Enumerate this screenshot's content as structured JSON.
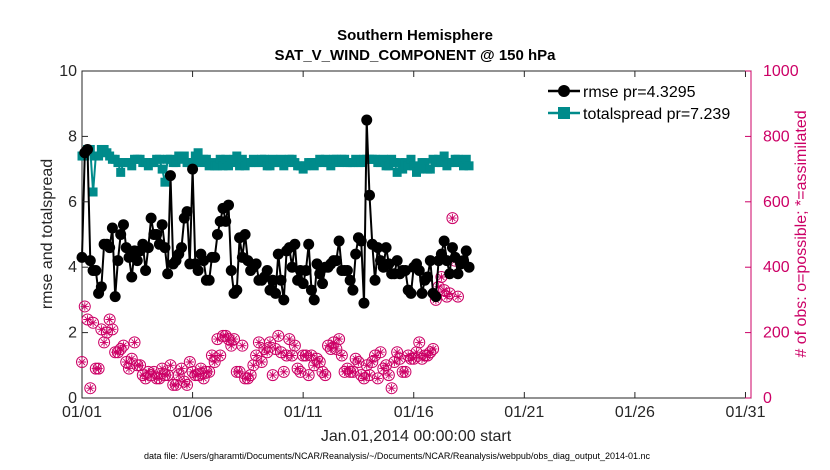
{
  "chart_data": {
    "type": "line",
    "title": [
      "Southern Hemisphere",
      "SAT_V_WIND_COMPONENT @ 150 hPa"
    ],
    "xlabel": "Jan.01,2014 00:00:00 start",
    "ylabel_left": "rmse and totalspread",
    "ylabel_right": "# of obs: o=possible; *=assimilated",
    "footnote": "data file: /Users/gharamti/Documents/NCAR/Reanalysis/~/Documents/NCAR/Reanalysis/webpub/obs_diag_output_2014-01.nc",
    "xlim": [
      1,
      31.25
    ],
    "ylim_left": [
      0,
      10
    ],
    "ylim_right": [
      0,
      1000
    ],
    "x_ticks": [
      1,
      6,
      11,
      16,
      21,
      26,
      31
    ],
    "x_tick_labels": [
      "01/01",
      "01/06",
      "01/11",
      "01/16",
      "01/21",
      "01/26",
      "01/31"
    ],
    "y_ticks_left": [
      "0",
      "2",
      "4",
      "6",
      "8",
      "10"
    ],
    "y_ticks_right": [
      "0",
      "200",
      "400",
      "600",
      "800",
      "1000"
    ],
    "grid": false,
    "legend_location": "top-right",
    "x_start": 1,
    "x_step": 0.125,
    "series": [
      {
        "name": "rmse pr=4.3295",
        "axis": "left",
        "color": "#000000",
        "marker": "circle",
        "values": [
          4.3,
          7.5,
          7.6,
          4.2,
          3.9,
          3.9,
          3.2,
          3.4,
          4.7,
          4.7,
          4.6,
          5.2,
          3.1,
          4.2,
          5.0,
          5.3,
          4.6,
          4.3,
          3.7,
          4.5,
          4.2,
          4.5,
          4.7,
          3.9,
          4.6,
          5.5,
          5.0,
          5.0,
          4.7,
          5.3,
          4.6,
          3.8,
          6.8,
          4.1,
          4.2,
          4.4,
          4.6,
          5.5,
          5.7,
          4.1,
          7.0,
          4.1,
          3.9,
          4.4,
          4.2,
          3.6,
          3.6,
          4.3,
          4.3,
          5.0,
          5.4,
          5.8,
          5.4,
          5.9,
          3.9,
          3.2,
          3.3,
          4.9,
          4.3,
          5.0,
          4.2,
          3.9,
          4.0,
          4.1,
          3.6,
          3.6,
          3.7,
          3.9,
          3.3,
          3.6,
          3.2,
          4.4,
          3.6,
          3.0,
          4.5,
          4.6,
          4.0,
          4.7,
          3.6,
          3.9,
          3.5,
          3.9,
          4.7,
          3.3,
          3.0,
          4.1,
          3.8,
          3.5,
          4.0,
          4.0,
          4.1,
          4.2,
          4.2,
          4.8,
          3.9,
          3.9,
          3.9,
          3.6,
          3.3,
          4.4,
          4.9,
          4.8,
          2.9,
          8.5,
          6.2,
          4.7,
          3.6,
          4.6,
          4.2,
          4.0,
          4.6,
          4.1,
          3.8,
          3.8,
          4.2,
          3.8,
          3.9,
          3.9,
          3.3,
          3.2,
          4.0,
          4.1,
          3.9,
          3.2,
          3.6,
          3.7,
          4.2,
          3.2,
          3.1,
          4.2,
          4.4,
          4.8,
          4.2,
          3.8,
          4.6,
          4.3,
          3.8,
          4.1,
          4.2,
          4.5,
          4.0
        ]
      },
      {
        "name": "totalspread pr=7.239",
        "axis": "left",
        "color": "#008b8b",
        "marker": "square",
        "values": [
          7.4,
          7.4,
          7.6,
          7.6,
          6.3,
          7.4,
          7.4,
          7.6,
          7.6,
          7.5,
          7.4,
          7.3,
          7.3,
          7.2,
          6.9,
          7.2,
          7.2,
          7.2,
          7.1,
          7.3,
          7.3,
          7.3,
          7.2,
          7.2,
          7.1,
          7.2,
          7.2,
          7.3,
          7.3,
          7.0,
          6.6,
          7.3,
          7.3,
          7.2,
          7.2,
          7.4,
          7.3,
          7.4,
          7.2,
          7.2,
          7.2,
          7.4,
          7.5,
          7.2,
          7.3,
          7.3,
          7.1,
          7.2,
          7.1,
          7.1,
          7.3,
          7.1,
          7.3,
          7.1,
          7.2,
          7.3,
          7.4,
          7.1,
          7.3,
          7.1,
          7.2,
          7.2,
          7.3,
          7.2,
          7.2,
          7.3,
          7.3,
          7.1,
          7.1,
          7.3,
          7.2,
          7.2,
          7.3,
          7.1,
          7.2,
          7.3,
          7.3,
          7.2,
          7.1,
          7.1,
          7.0,
          7.1,
          7.2,
          7.2,
          7.1,
          7.2,
          7.3,
          7.2,
          7.3,
          7.2,
          7.1,
          7.3,
          7.3,
          7.2,
          7.3,
          7.3,
          7.2,
          7.2,
          7.2,
          7.3,
          7.2,
          7.2,
          7.3,
          7.3,
          7.3,
          7.3,
          7.3,
          7.2,
          7.2,
          7.3,
          7.1,
          7.1,
          7.3,
          7.2,
          6.9,
          7.2,
          7.0,
          7.2,
          7.1,
          7.3,
          7.1,
          6.9,
          7.0,
          7.2,
          7.2,
          7.0,
          7.0,
          7.3,
          7.2,
          7.3,
          7.2,
          7.4,
          7.1,
          7.2,
          7.2,
          7.3,
          7.3,
          7.2,
          7.1,
          7.3,
          7.1
        ]
      },
      {
        "name": "possible",
        "axis": "right",
        "color": "#cc0066",
        "marker": "circle-open",
        "values": [
          110,
          280,
          240,
          30,
          230,
          90,
          90,
          210,
          170,
          200,
          240,
          210,
          140,
          140,
          150,
          160,
          110,
          90,
          120,
          170,
          100,
          100,
          70,
          60,
          80,
          70,
          80,
          60,
          60,
          90,
          70,
          70,
          100,
          40,
          40,
          70,
          90,
          50,
          40,
          110,
          80,
          70,
          70,
          90,
          60,
          80,
          80,
          130,
          110,
          180,
          130,
          190,
          190,
          180,
          160,
          180,
          80,
          80,
          160,
          60,
          60,
          70,
          100,
          130,
          170,
          110,
          150,
          140,
          170,
          70,
          150,
          190,
          140,
          80,
          130,
          180,
          130,
          160,
          90,
          80,
          130,
          130,
          70,
          130,
          100,
          120,
          110,
          80,
          70,
          160,
          150,
          170,
          150,
          180,
          130,
          80,
          90,
          80,
          80,
          120,
          110,
          70,
          60,
          100,
          70,
          110,
          130,
          60,
          140,
          90,
          100,
          70,
          30,
          110,
          140,
          120,
          80,
          80,
          130,
          120,
          120,
          140,
          170,
          120,
          130,
          130,
          140,
          150,
          300,
          340,
          370,
          330,
          310,
          320,
          550,
          420,
          310
        ]
      },
      {
        "name": "assimilated",
        "axis": "right",
        "color": "#cc0066",
        "marker": "star",
        "values": [
          110,
          280,
          240,
          30,
          230,
          90,
          90,
          210,
          170,
          200,
          240,
          210,
          140,
          140,
          150,
          160,
          110,
          90,
          120,
          170,
          100,
          100,
          70,
          60,
          80,
          70,
          80,
          60,
          60,
          90,
          70,
          70,
          100,
          40,
          40,
          70,
          90,
          50,
          40,
          110,
          80,
          70,
          70,
          90,
          60,
          80,
          80,
          130,
          110,
          180,
          130,
          190,
          190,
          180,
          160,
          180,
          80,
          80,
          160,
          60,
          60,
          70,
          100,
          130,
          170,
          110,
          150,
          140,
          170,
          70,
          150,
          190,
          140,
          80,
          130,
          180,
          130,
          160,
          90,
          80,
          130,
          130,
          70,
          130,
          100,
          120,
          110,
          80,
          70,
          160,
          150,
          170,
          150,
          180,
          130,
          80,
          90,
          80,
          80,
          120,
          110,
          70,
          60,
          100,
          70,
          110,
          130,
          60,
          140,
          90,
          100,
          70,
          30,
          110,
          140,
          120,
          80,
          80,
          130,
          120,
          120,
          140,
          170,
          120,
          130,
          130,
          140,
          150,
          300,
          340,
          370,
          330,
          310,
          320,
          550,
          420,
          310
        ]
      }
    ]
  }
}
